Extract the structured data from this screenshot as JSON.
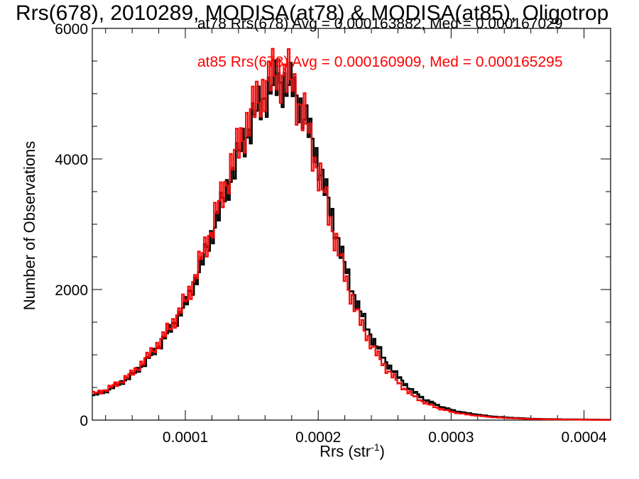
{
  "title": "Rrs(678), 2010289, MODISA(at78) & MODISA(at85), Oligotrop",
  "legend": [
    {
      "text": "at78 Rrs(678) Avg = 0.000163882, Med = 0.000167029",
      "color": "#000000"
    },
    {
      "text": "at85 Rrs(678) Avg = 0.000160909, Med = 0.000165295",
      "color": "#ff0000"
    }
  ],
  "chart_data": {
    "type": "line",
    "xlabel_main": "Rrs (str",
    "xlabel_sup": "-1",
    "xlabel_close": ")",
    "ylabel": "Number of Observations",
    "xlim": [
      3e-05,
      0.00042
    ],
    "ylim": [
      0,
      6000
    ],
    "x_tick_labels": [
      "0.0001",
      "0.0002",
      "0.0003",
      "0.0004"
    ],
    "y_tick_labels": [
      "0",
      "2000",
      "4000",
      "6000"
    ],
    "series": [
      {
        "name": "at78",
        "color": "#000000",
        "x": [
          3e-05,
          4e-05,
          5e-05,
          6e-05,
          7e-05,
          8e-05,
          9e-05,
          0.0001,
          0.00011,
          0.00012,
          0.00013,
          0.00014,
          0.00015,
          0.00016,
          0.00017,
          0.00018,
          0.00019,
          0.0002,
          0.00021,
          0.00022,
          0.00023,
          0.00024,
          0.00025,
          0.00026,
          0.00027,
          0.00028,
          0.00029,
          0.0003,
          0.00031,
          0.00032,
          0.00033,
          0.00034,
          0.00035,
          0.00036,
          0.00037,
          0.00038,
          0.00039,
          0.0004,
          0.00041,
          0.00042
        ],
        "values": [
          380,
          450,
          560,
          700,
          900,
          1150,
          1450,
          1800,
          2300,
          2900,
          3500,
          4100,
          4600,
          5000,
          5200,
          5100,
          4600,
          3900,
          3100,
          2300,
          1700,
          1250,
          900,
          650,
          450,
          310,
          220,
          150,
          110,
          80,
          55,
          40,
          30,
          20,
          15,
          12,
          10,
          8,
          6,
          5
        ]
      },
      {
        "name": "at85",
        "color": "#ff0000",
        "x": [
          3e-05,
          4e-05,
          5e-05,
          6e-05,
          7e-05,
          8e-05,
          9e-05,
          0.0001,
          0.00011,
          0.00012,
          0.00013,
          0.00014,
          0.00015,
          0.00016,
          0.00017,
          0.00018,
          0.00019,
          0.0002,
          0.00021,
          0.00022,
          0.00023,
          0.00024,
          0.00025,
          0.00026,
          0.00027,
          0.00028,
          0.00029,
          0.0003,
          0.00031,
          0.00032,
          0.00033,
          0.00034,
          0.00035,
          0.00036,
          0.00037,
          0.00038,
          0.00039,
          0.0004,
          0.00041,
          0.00042
        ],
        "values": [
          400,
          470,
          580,
          730,
          950,
          1200,
          1500,
          1850,
          2400,
          3000,
          3650,
          4250,
          4750,
          5150,
          5350,
          5150,
          4550,
          3750,
          2950,
          2150,
          1550,
          1120,
          800,
          560,
          380,
          260,
          180,
          125,
          90,
          65,
          45,
          33,
          25,
          17,
          12,
          10,
          8,
          6,
          5,
          4
        ]
      }
    ],
    "grid": false,
    "legend_position": "top-right"
  }
}
